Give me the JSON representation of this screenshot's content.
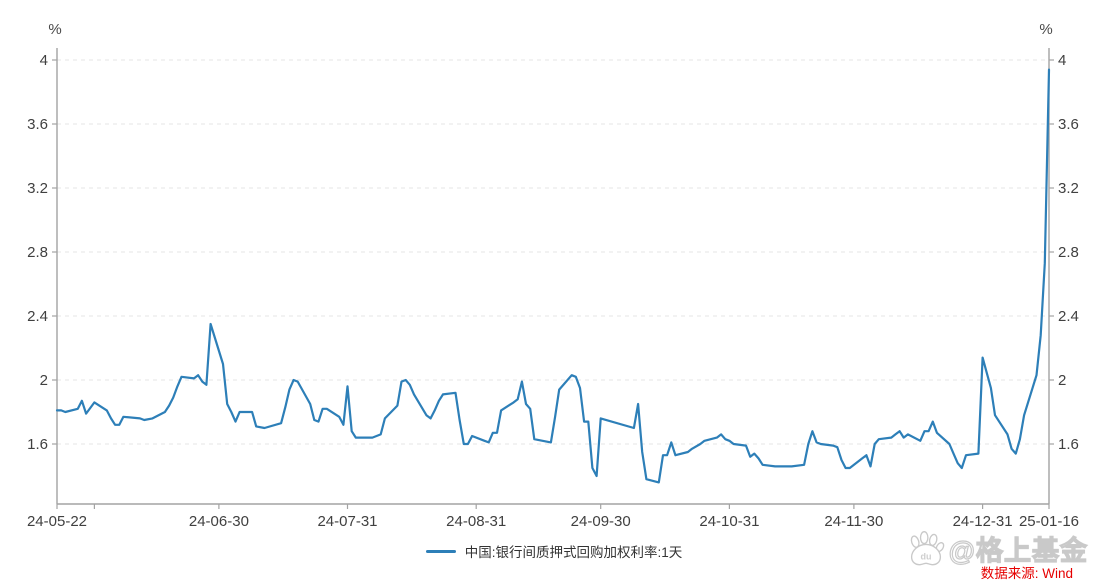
{
  "legend": {
    "marker": "line"
  },
  "watermark": {
    "logo": "baidu-paw",
    "logo_text": "du",
    "handle": "@格上基金",
    "source": "数据来源: Wind",
    "source_color": "#e60000"
  },
  "colors": {
    "line": "#2d7fb8",
    "axis": "#a3a3a3",
    "grid": "#e4e4e4",
    "tick_label": "#404040"
  },
  "chart_data": {
    "type": "line",
    "title": "",
    "xlabel": "",
    "ylabel": "%",
    "legend_position": "bottom-center",
    "grid": "dashed-horizontal",
    "y_axis": {
      "unit": "%",
      "ticks": [
        4,
        3.6,
        3.2,
        2.8,
        2.4,
        2,
        1.6
      ],
      "ylim_visible": [
        1.2,
        4.09
      ],
      "labels_on_both_sides": true
    },
    "x_axis": {
      "start": "2024-05-22",
      "end": "2025-01-16",
      "ticks": [
        {
          "date": "2024-05-22",
          "label": "24-05-22"
        },
        {
          "date": "2024-05-31",
          "label": ""
        },
        {
          "date": "2024-06-30",
          "label": "24-06-30"
        },
        {
          "date": "2024-07-31",
          "label": "24-07-31"
        },
        {
          "date": "2024-08-31",
          "label": "24-08-31"
        },
        {
          "date": "2024-09-30",
          "label": "24-09-30"
        },
        {
          "date": "2024-10-31",
          "label": "24-10-31"
        },
        {
          "date": "2024-11-30",
          "label": "24-11-30"
        },
        {
          "date": "2024-12-31",
          "label": "24-12-31"
        },
        {
          "date": "2025-01-16",
          "label": "25-01-16"
        }
      ]
    },
    "series": [
      {
        "name": "中国:银行间质押式回购加权利率:1天",
        "color": "#2d7fb8",
        "points": [
          [
            "2024-05-22",
            1.81
          ],
          [
            "2024-05-23",
            1.81
          ],
          [
            "2024-05-24",
            1.8
          ],
          [
            "2024-05-27",
            1.82
          ],
          [
            "2024-05-28",
            1.87
          ],
          [
            "2024-05-29",
            1.79
          ],
          [
            "2024-05-31",
            1.86
          ],
          [
            "2024-06-03",
            1.81
          ],
          [
            "2024-06-04",
            1.76
          ],
          [
            "2024-06-05",
            1.72
          ],
          [
            "2024-06-06",
            1.72
          ],
          [
            "2024-06-07",
            1.77
          ],
          [
            "2024-06-11",
            1.76
          ],
          [
            "2024-06-12",
            1.75
          ],
          [
            "2024-06-14",
            1.76
          ],
          [
            "2024-06-17",
            1.8
          ],
          [
            "2024-06-18",
            1.84
          ],
          [
            "2024-06-19",
            1.89
          ],
          [
            "2024-06-20",
            1.96
          ],
          [
            "2024-06-21",
            2.02
          ],
          [
            "2024-06-24",
            2.01
          ],
          [
            "2024-06-25",
            2.03
          ],
          [
            "2024-06-26",
            1.99
          ],
          [
            "2024-06-27",
            1.97
          ],
          [
            "2024-06-28",
            2.35
          ],
          [
            "2024-07-01",
            2.1
          ],
          [
            "2024-07-02",
            1.85
          ],
          [
            "2024-07-03",
            1.8
          ],
          [
            "2024-07-04",
            1.74
          ],
          [
            "2024-07-05",
            1.8
          ],
          [
            "2024-07-08",
            1.8
          ],
          [
            "2024-07-09",
            1.71
          ],
          [
            "2024-07-11",
            1.7
          ],
          [
            "2024-07-15",
            1.73
          ],
          [
            "2024-07-16",
            1.83
          ],
          [
            "2024-07-17",
            1.94
          ],
          [
            "2024-07-18",
            2.0
          ],
          [
            "2024-07-19",
            1.99
          ],
          [
            "2024-07-22",
            1.85
          ],
          [
            "2024-07-23",
            1.75
          ],
          [
            "2024-07-24",
            1.74
          ],
          [
            "2024-07-25",
            1.82
          ],
          [
            "2024-07-26",
            1.82
          ],
          [
            "2024-07-29",
            1.77
          ],
          [
            "2024-07-30",
            1.72
          ],
          [
            "2024-07-31",
            1.96
          ],
          [
            "2024-08-01",
            1.68
          ],
          [
            "2024-08-02",
            1.64
          ],
          [
            "2024-08-06",
            1.64
          ],
          [
            "2024-08-08",
            1.66
          ],
          [
            "2024-08-09",
            1.76
          ],
          [
            "2024-08-12",
            1.84
          ],
          [
            "2024-08-13",
            1.99
          ],
          [
            "2024-08-14",
            2.0
          ],
          [
            "2024-08-15",
            1.97
          ],
          [
            "2024-08-16",
            1.91
          ],
          [
            "2024-08-19",
            1.78
          ],
          [
            "2024-08-20",
            1.76
          ],
          [
            "2024-08-21",
            1.81
          ],
          [
            "2024-08-22",
            1.87
          ],
          [
            "2024-08-23",
            1.91
          ],
          [
            "2024-08-26",
            1.92
          ],
          [
            "2024-08-27",
            1.75
          ],
          [
            "2024-08-28",
            1.6
          ],
          [
            "2024-08-29",
            1.6
          ],
          [
            "2024-08-30",
            1.65
          ],
          [
            "2024-09-02",
            1.62
          ],
          [
            "2024-09-03",
            1.61
          ],
          [
            "2024-09-04",
            1.67
          ],
          [
            "2024-09-05",
            1.67
          ],
          [
            "2024-09-06",
            1.81
          ],
          [
            "2024-09-09",
            1.86
          ],
          [
            "2024-09-10",
            1.88
          ],
          [
            "2024-09-11",
            1.99
          ],
          [
            "2024-09-12",
            1.85
          ],
          [
            "2024-09-13",
            1.82
          ],
          [
            "2024-09-14",
            1.63
          ],
          [
            "2024-09-18",
            1.61
          ],
          [
            "2024-09-19",
            1.77
          ],
          [
            "2024-09-20",
            1.94
          ],
          [
            "2024-09-23",
            2.03
          ],
          [
            "2024-09-24",
            2.02
          ],
          [
            "2024-09-25",
            1.95
          ],
          [
            "2024-09-26",
            1.74
          ],
          [
            "2024-09-27",
            1.74
          ],
          [
            "2024-09-28",
            1.45
          ],
          [
            "2024-09-29",
            1.4
          ],
          [
            "2024-09-30",
            1.76
          ],
          [
            "2024-10-08",
            1.7
          ],
          [
            "2024-10-09",
            1.85
          ],
          [
            "2024-10-10",
            1.55
          ],
          [
            "2024-10-11",
            1.38
          ],
          [
            "2024-10-14",
            1.36
          ],
          [
            "2024-10-15",
            1.53
          ],
          [
            "2024-10-16",
            1.53
          ],
          [
            "2024-10-17",
            1.61
          ],
          [
            "2024-10-18",
            1.53
          ],
          [
            "2024-10-21",
            1.55
          ],
          [
            "2024-10-22",
            1.57
          ],
          [
            "2024-10-24",
            1.6
          ],
          [
            "2024-10-25",
            1.62
          ],
          [
            "2024-10-28",
            1.64
          ],
          [
            "2024-10-29",
            1.66
          ],
          [
            "2024-10-30",
            1.63
          ],
          [
            "2024-10-31",
            1.62
          ],
          [
            "2024-11-01",
            1.6
          ],
          [
            "2024-11-04",
            1.59
          ],
          [
            "2024-11-05",
            1.52
          ],
          [
            "2024-11-06",
            1.54
          ],
          [
            "2024-11-07",
            1.51
          ],
          [
            "2024-11-08",
            1.47
          ],
          [
            "2024-11-11",
            1.46
          ],
          [
            "2024-11-13",
            1.46
          ],
          [
            "2024-11-15",
            1.46
          ],
          [
            "2024-11-18",
            1.47
          ],
          [
            "2024-11-19",
            1.6
          ],
          [
            "2024-11-20",
            1.68
          ],
          [
            "2024-11-21",
            1.61
          ],
          [
            "2024-11-22",
            1.6
          ],
          [
            "2024-11-25",
            1.59
          ],
          [
            "2024-11-26",
            1.58
          ],
          [
            "2024-11-27",
            1.5
          ],
          [
            "2024-11-28",
            1.45
          ],
          [
            "2024-11-29",
            1.45
          ],
          [
            "2024-12-02",
            1.51
          ],
          [
            "2024-12-03",
            1.53
          ],
          [
            "2024-12-04",
            1.46
          ],
          [
            "2024-12-05",
            1.6
          ],
          [
            "2024-12-06",
            1.63
          ],
          [
            "2024-12-09",
            1.64
          ],
          [
            "2024-12-10",
            1.66
          ],
          [
            "2024-12-11",
            1.68
          ],
          [
            "2024-12-12",
            1.64
          ],
          [
            "2024-12-13",
            1.66
          ],
          [
            "2024-12-16",
            1.62
          ],
          [
            "2024-12-17",
            1.68
          ],
          [
            "2024-12-18",
            1.68
          ],
          [
            "2024-12-19",
            1.74
          ],
          [
            "2024-12-20",
            1.67
          ],
          [
            "2024-12-23",
            1.6
          ],
          [
            "2024-12-24",
            1.54
          ],
          [
            "2024-12-25",
            1.48
          ],
          [
            "2024-12-26",
            1.45
          ],
          [
            "2024-12-27",
            1.53
          ],
          [
            "2024-12-30",
            1.54
          ],
          [
            "2024-12-31",
            2.14
          ],
          [
            "2025-01-02",
            1.95
          ],
          [
            "2025-01-03",
            1.78
          ],
          [
            "2025-01-06",
            1.66
          ],
          [
            "2025-01-07",
            1.57
          ],
          [
            "2025-01-08",
            1.54
          ],
          [
            "2025-01-09",
            1.63
          ],
          [
            "2025-01-10",
            1.78
          ],
          [
            "2025-01-13",
            2.03
          ],
          [
            "2025-01-14",
            2.28
          ],
          [
            "2025-01-15",
            2.73
          ],
          [
            "2025-01-16",
            3.94
          ]
        ]
      }
    ]
  }
}
